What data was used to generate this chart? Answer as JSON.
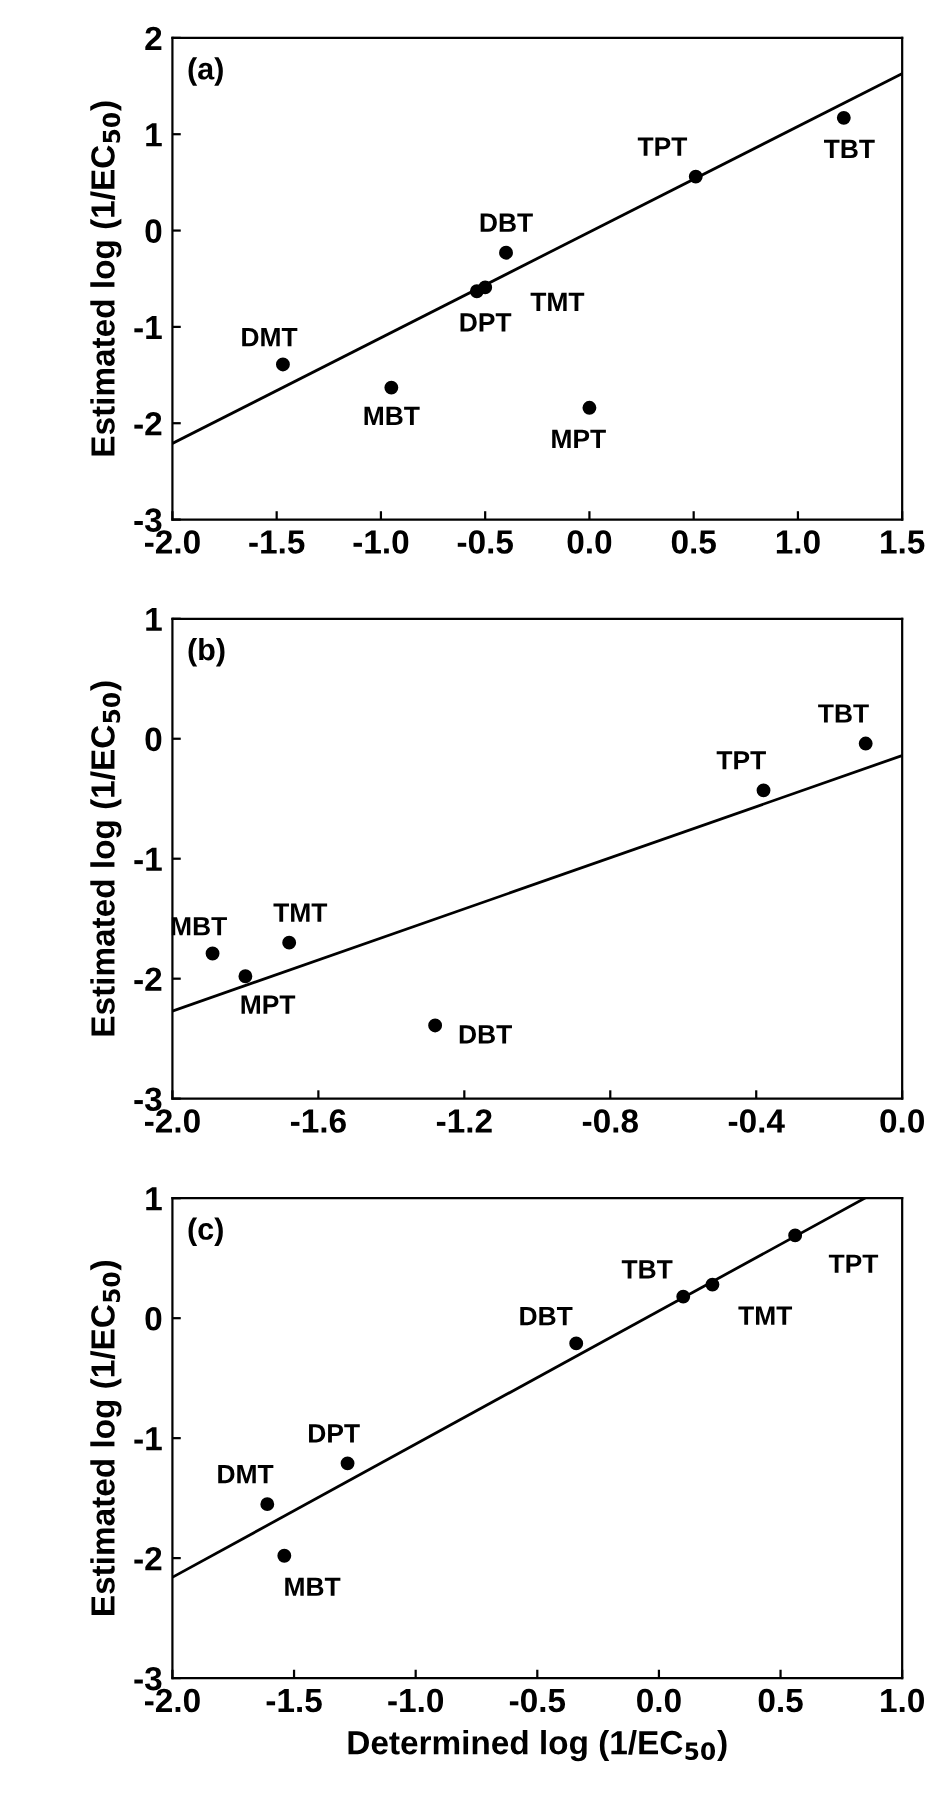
{
  "chart_data": [
    {
      "type": "scatter",
      "ylabel": "Estimated log (1/EC$_{50}$)",
      "xlim": [
        -2,
        1.5
      ],
      "ylim": [
        -3,
        2
      ],
      "xticks": [
        {
          "value": -2,
          "label": "-2.0"
        },
        {
          "value": -1.5,
          "label": "-1.5"
        },
        {
          "value": -1,
          "label": "-1.0"
        },
        {
          "value": -0.5,
          "label": "-0.5"
        },
        {
          "value": 0,
          "label": "0.0"
        },
        {
          "value": 0.5,
          "label": "0.5"
        },
        {
          "value": 1,
          "label": "1.0"
        },
        {
          "value": 1.5,
          "label": "1.5"
        }
      ],
      "yticks": [
        -3,
        -2,
        -1,
        0,
        1,
        2
      ],
      "grid": false,
      "marker": "circle",
      "series": [
        {
          "color": "#000000",
          "x": [
            -1.47,
            -0.95,
            -0.54,
            -0.5,
            -0.4,
            0.0,
            0.51,
            1.22
          ],
          "values": [
            -1.39,
            -1.63,
            -0.63,
            -0.59,
            -0.23,
            -1.84,
            0.56,
            1.17
          ]
        },
        {
          "type": "line",
          "color": "#000000",
          "x": [
            -2,
            1.5
          ],
          "values": [
            -2.21,
            1.63
          ],
          "marker": "none",
          "line_style": "solid"
        }
      ],
      "annotations": [
        "(a)",
        {
          "text": "DMT",
          "x": -1.47,
          "y": -1.39
        },
        {
          "text": "MBT",
          "x": -0.95,
          "y": -1.63
        },
        {
          "text": "DPT",
          "x": -0.54,
          "y": -0.63
        },
        {
          "text": "TMT",
          "x": -0.5,
          "y": -0.59
        },
        {
          "text": "DBT",
          "x": -0.4,
          "y": -0.23
        },
        {
          "text": "MPT",
          "x": 0.0,
          "y": -1.84
        },
        {
          "text": "TPT",
          "x": 0.51,
          "y": 0.56
        },
        {
          "text": "TBT",
          "x": 1.22,
          "y": 1.17
        }
      ]
    },
    {
      "type": "scatter",
      "ylabel": "Estimated log (1/EC$_{50}$)",
      "xlim": [
        -2,
        0
      ],
      "ylim": [
        -3,
        1
      ],
      "xticks": [
        {
          "value": -2,
          "label": "-2.0"
        },
        {
          "value": -1.6,
          "label": "-1.6"
        },
        {
          "value": -1.2,
          "label": "-1.2"
        },
        {
          "value": -0.8,
          "label": "-0.8"
        },
        {
          "value": -0.4,
          "label": "-0.4"
        },
        {
          "value": 0,
          "label": "0.0"
        }
      ],
      "yticks": [
        -3,
        -2,
        -1,
        0,
        1
      ],
      "grid": false,
      "marker": "circle",
      "series": [
        {
          "color": "#000000",
          "x": [
            -1.89,
            -1.8,
            -1.68,
            -1.28,
            -0.38,
            -0.1
          ],
          "values": [
            -1.79,
            -1.98,
            -1.7,
            -2.39,
            -0.43,
            -0.04
          ]
        },
        {
          "type": "line",
          "color": "#000000",
          "x": [
            -2,
            0
          ],
          "values": [
            -2.27,
            -0.14
          ],
          "marker": "none",
          "line_style": "solid"
        }
      ],
      "annotations": [
        "(b)",
        {
          "text": "MBT",
          "x": -1.89,
          "y": -1.79
        },
        {
          "text": "MPT",
          "x": -1.8,
          "y": -1.98
        },
        {
          "text": "TMT",
          "x": -1.68,
          "y": -1.7
        },
        {
          "text": "DBT",
          "x": -1.28,
          "y": -2.39
        },
        {
          "text": "TPT",
          "x": -0.38,
          "y": -0.43
        },
        {
          "text": "TBT",
          "x": -0.1,
          "y": -0.04
        }
      ]
    },
    {
      "type": "scatter",
      "ylabel": "Estimated log (1/EC$_{50}$)",
      "xlabel": "Determined log (1/EC$_{50}$)",
      "xlim": [
        -2,
        1
      ],
      "ylim": [
        -3,
        1
      ],
      "xticks": [
        {
          "value": -2,
          "label": "-2.0"
        },
        {
          "value": -1.5,
          "label": "-1.5"
        },
        {
          "value": -1,
          "label": "-1.0"
        },
        {
          "value": -0.5,
          "label": "-0.5"
        },
        {
          "value": 0,
          "label": "0.0"
        },
        {
          "value": 0.5,
          "label": "0.5"
        },
        {
          "value": 1,
          "label": "1.0"
        }
      ],
      "yticks": [
        -3,
        -2,
        -1,
        0,
        1
      ],
      "grid": false,
      "marker": "circle",
      "series": [
        {
          "color": "#000000",
          "x": [
            -1.61,
            -1.54,
            -1.28,
            -0.34,
            0.1,
            0.22,
            0.56
          ],
          "values": [
            -1.55,
            -1.98,
            -1.21,
            -0.21,
            0.18,
            0.28,
            0.69
          ]
        },
        {
          "type": "line",
          "color": "#000000",
          "x": [
            -2,
            0.846
          ],
          "values": [
            -2.16,
            1.0
          ],
          "marker": "none",
          "line_style": "solid"
        }
      ],
      "annotations": [
        "(c)",
        {
          "text": "DMT",
          "x": -1.61,
          "y": -1.55
        },
        {
          "text": "MBT",
          "x": -1.54,
          "y": -1.98
        },
        {
          "text": "DPT",
          "x": -1.28,
          "y": -1.21
        },
        {
          "text": "DBT",
          "x": -0.34,
          "y": -0.21
        },
        {
          "text": "TBT",
          "x": 0.1,
          "y": 0.18
        },
        {
          "text": "TMT",
          "x": 0.22,
          "y": 0.28
        },
        {
          "text": "TPT",
          "x": 0.56,
          "y": 0.69
        }
      ]
    }
  ]
}
